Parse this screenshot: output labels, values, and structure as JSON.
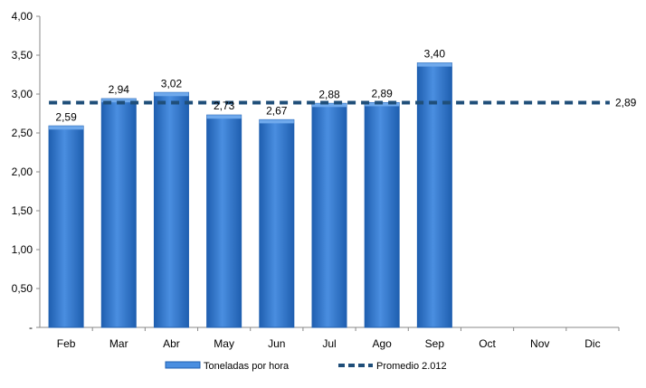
{
  "chart_data": {
    "type": "bar",
    "categories": [
      "Feb",
      "Mar",
      "Abr",
      "May",
      "Jun",
      "Jul",
      "Ago",
      "Sep",
      "Oct",
      "Nov",
      "Dic"
    ],
    "series": [
      {
        "name": "Toneladas por hora",
        "type": "bar",
        "values": [
          2.59,
          2.94,
          3.02,
          2.73,
          2.67,
          2.88,
          2.89,
          3.4,
          null,
          null,
          null
        ],
        "labels": [
          "2,59",
          "2,94",
          "3,02",
          "2,73",
          "2,67",
          "2,88",
          "2,89",
          "3,40",
          "",
          "",
          ""
        ]
      },
      {
        "name": "Promedio 2.012",
        "type": "line",
        "style": "dashed",
        "value": 2.89,
        "label": "2,89"
      }
    ],
    "ylim": [
      0,
      4
    ],
    "yticks": [
      0,
      0.5,
      1,
      1.5,
      2,
      2.5,
      3,
      3.5,
      4
    ],
    "ytick_labels": [
      "-",
      "0,50",
      "1,00",
      "1,50",
      "2,00",
      "2,50",
      "3,00",
      "3,50",
      "4,00"
    ],
    "grid": false,
    "legend_position": "bottom",
    "colors": {
      "bar": "#4a8ee0",
      "bar_dark": "#1f5fb0",
      "line": "#1f4e79"
    }
  }
}
